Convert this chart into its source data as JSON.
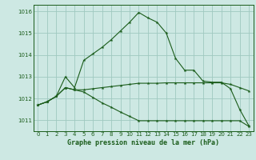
{
  "x": [
    0,
    1,
    2,
    3,
    4,
    5,
    6,
    7,
    8,
    9,
    10,
    11,
    12,
    13,
    14,
    15,
    16,
    17,
    18,
    19,
    20,
    21,
    22,
    23
  ],
  "line_upper": [
    1011.7,
    1011.85,
    1012.1,
    1013.0,
    1012.5,
    1013.75,
    1014.05,
    1014.35,
    1014.7,
    1015.1,
    1015.5,
    1015.95,
    1015.7,
    1015.5,
    1015.0,
    1013.85,
    1013.3,
    1013.3,
    1012.8,
    1012.75,
    1012.75,
    1012.45,
    1011.5,
    1010.75
  ],
  "line_middle": [
    1011.7,
    1011.85,
    1012.1,
    1012.5,
    1012.4,
    1012.4,
    1012.45,
    1012.5,
    1012.55,
    1012.6,
    1012.65,
    1012.7,
    1012.7,
    1012.7,
    1012.72,
    1012.72,
    1012.72,
    1012.72,
    1012.72,
    1012.72,
    1012.72,
    1012.65,
    1012.5,
    1012.35
  ],
  "line_lower": [
    1011.7,
    1011.85,
    1012.1,
    1012.5,
    1012.4,
    1012.3,
    1012.05,
    1011.8,
    1011.6,
    1011.38,
    1011.18,
    1010.98,
    1010.98,
    1010.98,
    1010.98,
    1010.98,
    1010.98,
    1010.98,
    1010.98,
    1010.98,
    1010.98,
    1010.98,
    1010.98,
    1010.72
  ],
  "bg_color": "#cde8e3",
  "line_color": "#1a5c1a",
  "grid_color": "#9fc8c0",
  "xlabel": "Graphe pression niveau de la mer (hPa)",
  "ylim": [
    1010.5,
    1016.3
  ],
  "yticks": [
    1011,
    1012,
    1013,
    1014,
    1015,
    1016
  ],
  "xticks": [
    0,
    1,
    2,
    3,
    4,
    5,
    6,
    7,
    8,
    9,
    10,
    11,
    12,
    13,
    14,
    15,
    16,
    17,
    18,
    19,
    20,
    21,
    22,
    23
  ],
  "figw": 3.2,
  "figh": 2.0,
  "dpi": 100
}
